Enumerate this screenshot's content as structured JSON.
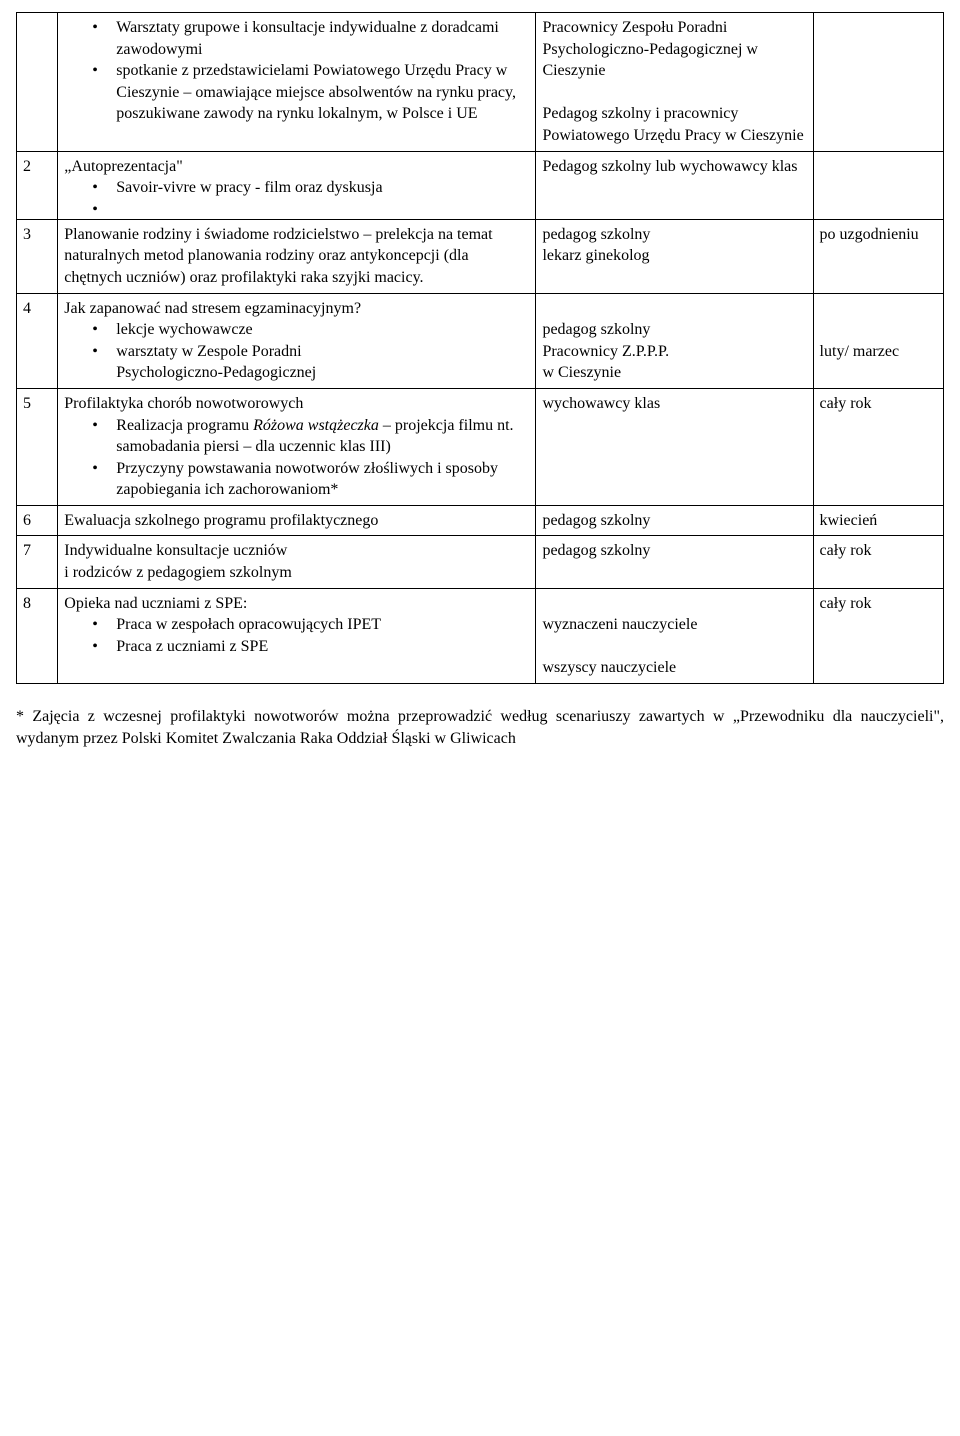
{
  "rows": [
    {
      "num": "",
      "topic": {
        "bullets": [
          "Warsztaty grupowe i konsultacje indywidualne z doradcami zawodowymi",
          "spotkanie z przedstawicielami Powiatowego Urzędu Pracy w Cieszynie – omawiające miejsce absolwentów na rynku pracy, poszukiwane zawody na rynku lokalnym, w Polsce i UE"
        ]
      },
      "resp": "Pracownicy Zespołu Poradni Psychologiczno-Pedagogicznej w Cieszynie\n\nPedagog szkolny i pracownicy Powiatowego Urzędu Pracy w Cieszynie",
      "date": ""
    },
    {
      "num": "2",
      "topic": {
        "title": "„Autoprezentacja\"",
        "bullets": [
          "Savoir-vivre w pracy - film oraz dyskusja",
          ""
        ]
      },
      "resp": "Pedagog szkolny lub wychowawcy klas",
      "date": ""
    },
    {
      "num": "3",
      "topic": {
        "text": "Planowanie rodziny i świadome rodzicielstwo  – prelekcja na temat naturalnych metod planowania rodziny oraz antykoncepcji (dla chętnych uczniów) oraz profilaktyki raka szyjki macicy."
      },
      "resp": "pedagog szkolny\nlekarz ginekolog",
      "date": "po uzgodnieniu"
    },
    {
      "num": "4",
      "topic": {
        "title": "Jak zapanować nad stresem egzaminacyjnym?",
        "bullets": [
          "lekcje wychowawcze",
          "warsztaty w Zespole Poradni"
        ],
        "sublines": [
          "Psychologiczno-Pedagogicznej"
        ]
      },
      "resp": "\npedagog szkolny\nPracownicy Z.P.P.P.\nw Cieszynie",
      "date": "\n\nluty/ marzec"
    },
    {
      "num": "5",
      "topic": {
        "title": "Profilaktyka chorób nowotworowych",
        "bullets_html": [
          "Realizacja programu <i>Różowa wstążeczka</i> – projekcja filmu nt. samobadania piersi – dla uczennic klas III)",
          "Przyczyny powstawania nowotworów złośliwych i sposoby zapobiegania ich zachorowaniom*"
        ]
      },
      "resp": "wychowawcy klas",
      "date": "cały rok"
    },
    {
      "num": "6",
      "topic": {
        "text": "Ewaluacja szkolnego programu profilaktycznego"
      },
      "resp": "pedagog szkolny",
      "date": "kwiecień"
    },
    {
      "num": "7",
      "topic": {
        "text": "Indywidualne konsultacje uczniów\ni rodziców z pedagogiem szkolnym"
      },
      "resp": "pedagog szkolny",
      "date": "cały rok"
    },
    {
      "num": "8",
      "topic": {
        "title": "Opieka nad uczniami z SPE:",
        "bullets": [
          "Praca w zespołach opracowujących IPET",
          "Praca z uczniami z SPE"
        ]
      },
      "resp": "\nwyznaczeni nauczyciele\n\nwszyscy nauczyciele",
      "date": "cały rok"
    }
  ],
  "footnote": "* Zajęcia z wczesnej profilaktyki nowotworów można przeprowadzić według scenariuszy zawartych w „Przewodniku dla nauczycieli\", wydanym przez Polski Komitet Zwalczania Raka Oddział Śląski w Gliwicach"
}
